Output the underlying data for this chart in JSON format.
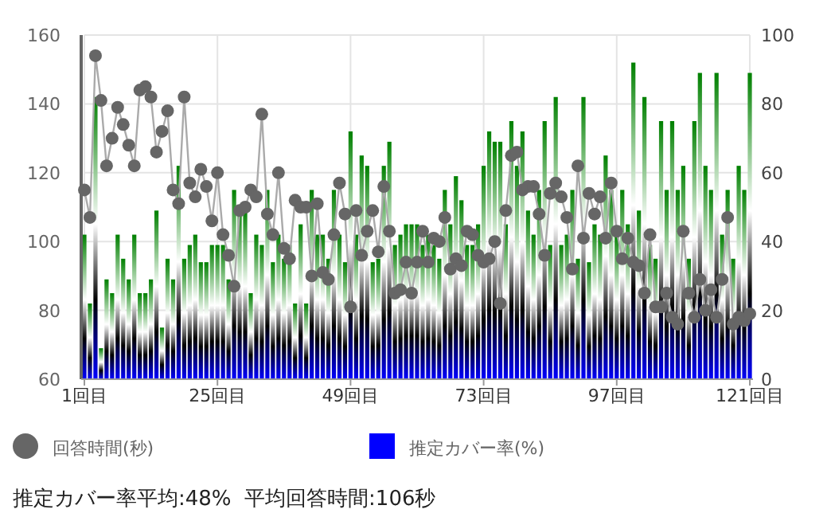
{
  "chart_data": {
    "type": "bar",
    "categories": [
      "1回目",
      null,
      null,
      null,
      null,
      null,
      null,
      null,
      null,
      null,
      null,
      null,
      null,
      null,
      null,
      null,
      null,
      null,
      null,
      null,
      null,
      null,
      null,
      null,
      "25回目",
      null,
      null,
      null,
      null,
      null,
      null,
      null,
      null,
      null,
      null,
      null,
      null,
      null,
      null,
      null,
      null,
      null,
      null,
      null,
      null,
      null,
      null,
      null,
      "49回目",
      null,
      null,
      null,
      null,
      null,
      null,
      null,
      null,
      null,
      null,
      null,
      null,
      null,
      null,
      null,
      null,
      null,
      null,
      null,
      null,
      null,
      null,
      null,
      "73回目",
      null,
      null,
      null,
      null,
      null,
      null,
      null,
      null,
      null,
      null,
      null,
      null,
      null,
      null,
      null,
      null,
      null,
      null,
      null,
      null,
      null,
      null,
      null,
      "97回目",
      null,
      null,
      null,
      null,
      null,
      null,
      null,
      null,
      null,
      null,
      null,
      null,
      null,
      null,
      null,
      null,
      null,
      null,
      null,
      null,
      null,
      null,
      null,
      "121回目"
    ],
    "series": [
      {
        "name": "回答時間(秒)",
        "type": "line",
        "color": "#666666",
        "marker": "circle",
        "values": [
          115,
          107,
          154,
          141,
          122,
          130,
          139,
          134,
          128,
          122,
          144,
          145,
          142,
          126,
          132,
          138,
          115,
          111,
          142,
          117,
          113,
          121,
          116,
          106,
          120,
          102,
          96,
          87,
          109,
          110,
          115,
          113,
          137,
          108,
          102,
          120,
          98,
          95,
          112,
          110,
          110,
          90,
          111,
          91,
          89,
          102,
          117,
          108,
          81,
          109,
          96,
          103,
          109,
          97,
          116,
          103,
          85,
          86,
          94,
          85,
          94,
          103,
          94,
          101,
          100,
          107,
          92,
          95,
          93,
          103,
          102,
          96,
          94,
          95,
          100,
          82,
          109,
          125,
          126,
          115,
          116,
          116,
          108,
          96,
          114,
          117,
          113,
          107,
          92,
          122,
          101,
          114,
          108,
          113,
          101,
          117,
          103,
          95,
          101,
          94,
          93,
          85,
          102,
          81,
          81,
          85,
          78,
          76,
          103,
          85,
          78,
          89,
          80,
          86,
          78,
          89,
          107,
          76,
          78,
          77,
          79
        ]
      },
      {
        "name": "推定カバー率(%)",
        "color": "#0000ff",
        "axis": "y2",
        "values": [
          42,
          22,
          82,
          9,
          29,
          25,
          42,
          35,
          29,
          42,
          25,
          25,
          29,
          49,
          15,
          35,
          29,
          62,
          35,
          39,
          42,
          34,
          34,
          39,
          39,
          39,
          29,
          55,
          49,
          49,
          25,
          42,
          39,
          55,
          34,
          42,
          35,
          39,
          22,
          45,
          22,
          55,
          42,
          42,
          35,
          55,
          42,
          34,
          72,
          42,
          65,
          62,
          34,
          35,
          62,
          69,
          39,
          42,
          45,
          45,
          45,
          39,
          42,
          39,
          35,
          55,
          45,
          59,
          52,
          39,
          39,
          45,
          62,
          72,
          69,
          69,
          45,
          75,
          62,
          72,
          49,
          42,
          55,
          75,
          39,
          82,
          39,
          42,
          55,
          35,
          82,
          34,
          45,
          42,
          65,
          55,
          42,
          55,
          45,
          92,
          49,
          82,
          39,
          35,
          75,
          55,
          75,
          55,
          62,
          35,
          75,
          89,
          62,
          55,
          89,
          42,
          55,
          35,
          62,
          55,
          89
        ]
      }
    ],
    "ylim": [
      60,
      160
    ],
    "yticks": [
      60,
      80,
      100,
      120,
      140,
      160
    ],
    "y2lim": [
      0,
      100
    ],
    "y2ticks": [
      0,
      20,
      40,
      60,
      80,
      100
    ],
    "grid": true,
    "legend": "bottom",
    "annotations": [
      "推定カバー率平均:48%  平均回答時間:106秒"
    ]
  }
}
